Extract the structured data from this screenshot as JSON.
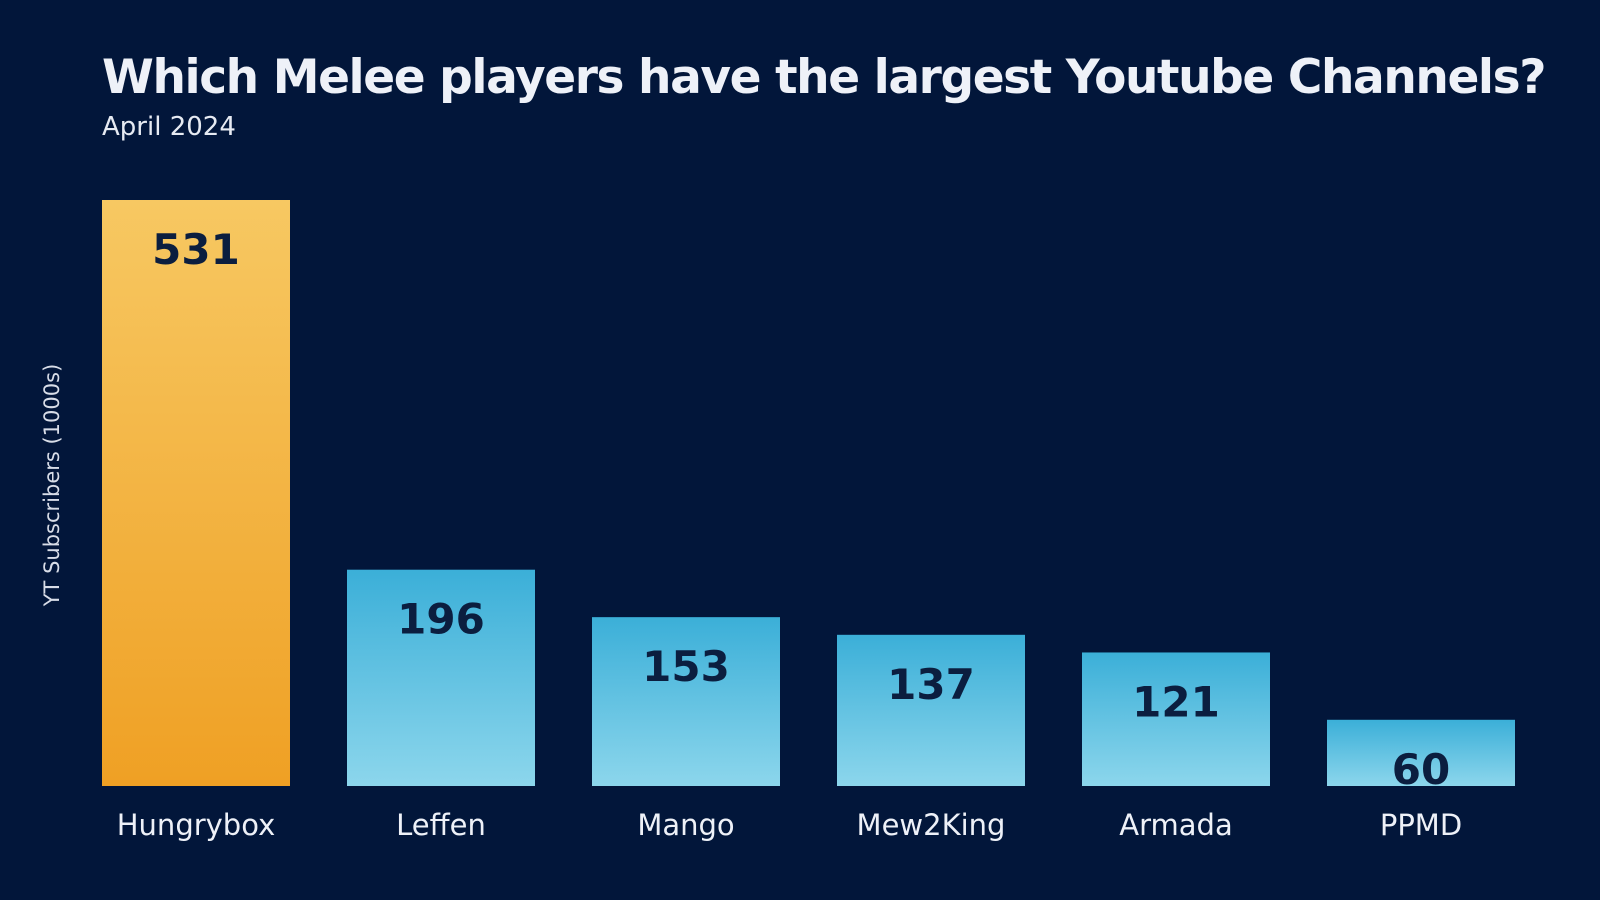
{
  "chart_data": {
    "type": "bar",
    "title": "Which Melee players have the largest Youtube Channels?",
    "subtitle": "April 2024",
    "ylabel": "YT Subscribers (1000s)",
    "xlabel": "",
    "categories": [
      "Hungrybox",
      "Leffen",
      "Mango",
      "Mew2King",
      "Armada",
      "PPMD"
    ],
    "values": [
      531,
      196,
      153,
      137,
      121,
      60
    ],
    "ylim": [
      0,
      531
    ],
    "grid": false,
    "legend": "none",
    "highlight_index": 0,
    "colors": {
      "highlight_top": "#f7c862",
      "highlight_bottom": "#efa024",
      "bar_top": "#3bafd8",
      "bar_bottom": "#8cd6ec",
      "value_label": "#0b1e3f",
      "category_label": "#eef1f8"
    }
  }
}
